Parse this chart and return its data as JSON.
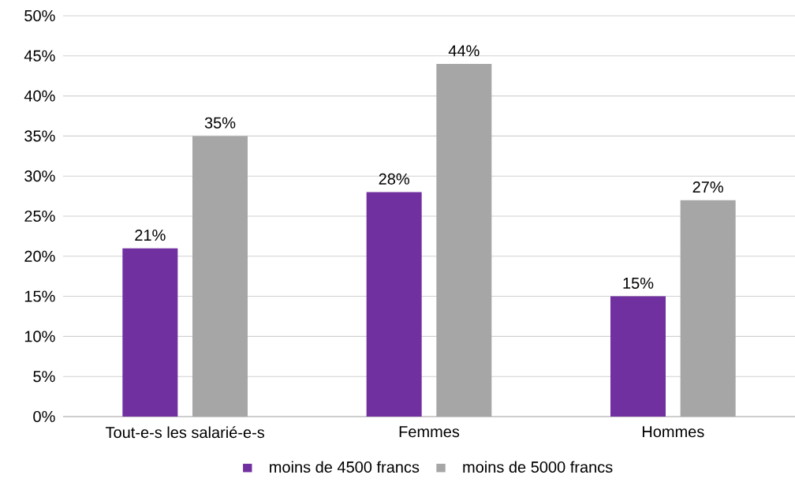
{
  "chart_data": {
    "type": "bar",
    "categories": [
      "Tout-e-s les salarié-e-s",
      "Femmes",
      "Hommes"
    ],
    "series": [
      {
        "name": "moins de 4500 francs",
        "color": "#7030a0",
        "values": [
          21,
          28,
          15
        ],
        "value_labels": [
          "21%",
          "28%",
          "15%"
        ]
      },
      {
        "name": "moins de 5000 francs",
        "color": "#a6a6a6",
        "values": [
          35,
          44,
          27
        ],
        "value_labels": [
          "35%",
          "44%",
          "27%"
        ]
      }
    ],
    "ylim": [
      0,
      50
    ],
    "yticks": [
      {
        "value": 0,
        "label": "0%"
      },
      {
        "value": 5,
        "label": "5%"
      },
      {
        "value": 10,
        "label": "10%"
      },
      {
        "value": 15,
        "label": "15%"
      },
      {
        "value": 20,
        "label": "20%"
      },
      {
        "value": 25,
        "label": "25%"
      },
      {
        "value": 30,
        "label": "30%"
      },
      {
        "value": 35,
        "label": "35%"
      },
      {
        "value": 40,
        "label": "40%"
      },
      {
        "value": 45,
        "label": "45%"
      },
      {
        "value": 50,
        "label": "50%"
      }
    ],
    "grid": "y",
    "legend": "bottom"
  }
}
